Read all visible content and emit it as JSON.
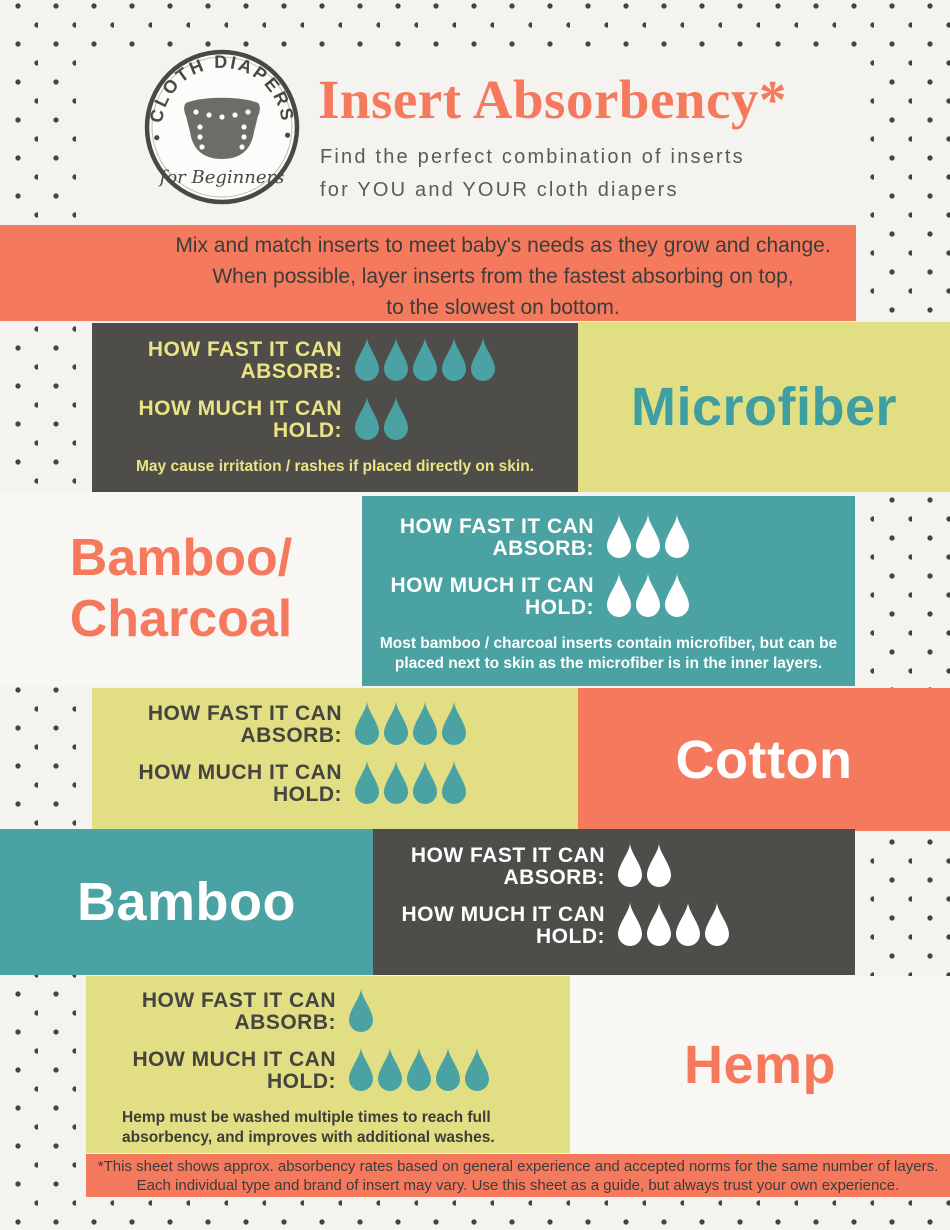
{
  "colors": {
    "orange": "#f5795c",
    "teal": "#4aa2a2",
    "yellow": "#e2de83",
    "dark_gray": "#4e4d4a",
    "cream_background": "#f5f3f0",
    "teal_text": "#3e9ea0",
    "yellow_text": "#eae485",
    "dot_color": "#45443e"
  },
  "header": {
    "logo_top": "• CLOTH DIAPERS •",
    "logo_bottom": "for Beginners",
    "title": "Insert Absorbency*",
    "subtitle_line1": "Find the perfect combination of inserts",
    "subtitle_line2": "for YOU and YOUR cloth diapers"
  },
  "intro": {
    "line1": "Mix and match inserts to meet baby's needs as they grow and change.",
    "line2": "When possible, layer inserts from the fastest absorbing on top,",
    "line3": "to the slowest on bottom."
  },
  "stat_labels": {
    "fast_line1": "HOW FAST IT CAN",
    "fast_line2": "ABSORB:",
    "much_line1": "HOW MUCH IT CAN",
    "much_line2": "HOLD:"
  },
  "materials": {
    "microfiber": {
      "name": "Microfiber",
      "absorb": 5,
      "hold": 2,
      "note": "May cause irritation / rashes if placed directly on skin."
    },
    "bamboo_charcoal": {
      "name_line1": "Bamboo/",
      "name_line2": "Charcoal",
      "absorb": 3,
      "hold": 3,
      "note_line1": "Most bamboo / charcoal inserts contain microfiber, but can be",
      "note_line2": "placed next to skin as the microfiber is in the inner layers."
    },
    "cotton": {
      "name": "Cotton",
      "absorb": 4,
      "hold": 4
    },
    "bamboo": {
      "name": "Bamboo",
      "absorb": 2,
      "hold": 4
    },
    "hemp": {
      "name": "Hemp",
      "absorb": 1,
      "hold": 5,
      "note_line1": "Hemp must be washed multiple times to reach full",
      "note_line2": "absorbency, and improves with additional washes."
    }
  },
  "footer": {
    "line1": "*This sheet shows approx. absorbency rates based on general experience and accepted norms for the same number of layers.",
    "line2": "Each individual type and brand of insert may vary. Use this sheet as a guide, but always trust your own experience."
  }
}
